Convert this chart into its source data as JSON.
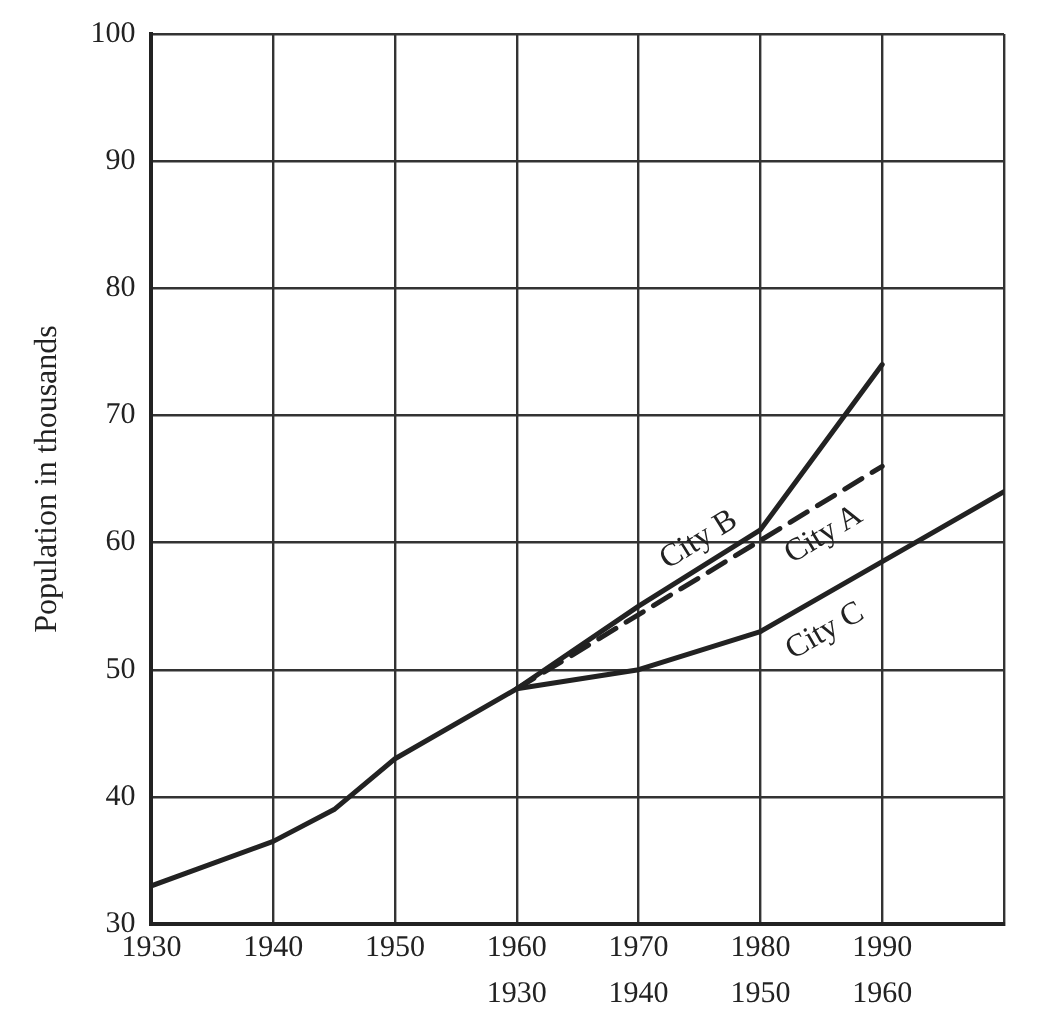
{
  "chart_data": {
    "type": "line",
    "ylabel": "Population in thousands",
    "xlim": [
      1930,
      2000
    ],
    "xticks": [
      1930,
      1940,
      1950,
      1960,
      1970,
      1980,
      1990,
      {
        "value": 2000,
        "label": null
      }
    ],
    "x2lim": [
      1900,
      1970
    ],
    "x2ticks": [
      1930,
      1940,
      1950,
      1960
    ],
    "ylim": [
      30,
      100
    ],
    "yticks": [
      30,
      40,
      50,
      60,
      70,
      80,
      90,
      100
    ],
    "grid": true,
    "legend": false,
    "marker": "none",
    "series": [
      {
        "name": "City B",
        "color": "#222222",
        "x": [
          1960,
          1970,
          1980,
          1990
        ],
        "values": [
          48.5,
          55,
          61,
          74
        ]
      },
      {
        "name": "City A",
        "color": "#222222",
        "line_style": "dashed",
        "x": [
          1960,
          1990
        ],
        "values": [
          48.5,
          66
        ]
      },
      {
        "name": "City C",
        "color": "#222222",
        "x": [
          1930,
          1940,
          1945,
          1950,
          1960,
          1970,
          1980,
          1990,
          2000
        ],
        "values": [
          33,
          36.5,
          39,
          43,
          48.5,
          50,
          53,
          58.5,
          64
        ]
      }
    ]
  }
}
